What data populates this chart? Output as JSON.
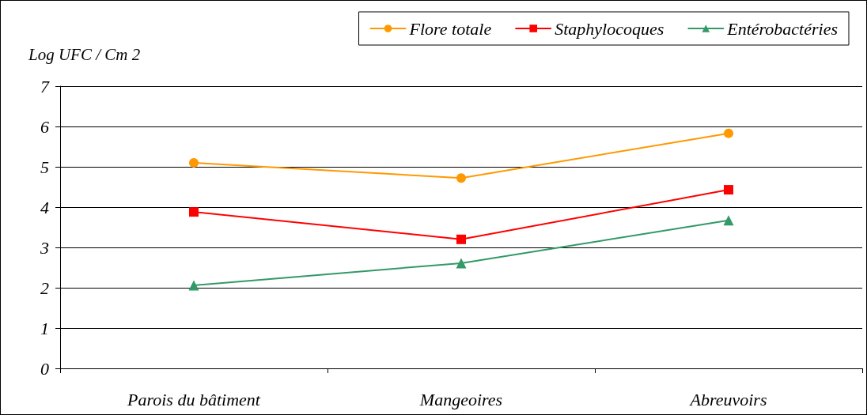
{
  "chart_data": {
    "type": "line",
    "ylabel": "Log UFC / Cm 2",
    "categories": [
      "Parois du bâtiment",
      "Mangeoires",
      "Abreuvoirs"
    ],
    "series": [
      {
        "name": "Flore totale",
        "color": "#ff9900",
        "marker": "circle",
        "values": [
          5.1,
          4.72,
          5.83
        ]
      },
      {
        "name": "Staphylocoques",
        "color": "#ff0000",
        "marker": "square",
        "values": [
          3.88,
          3.2,
          4.43
        ]
      },
      {
        "name": "Entérobactéries",
        "color": "#339966",
        "marker": "triangle",
        "values": [
          2.06,
          2.61,
          3.67
        ]
      }
    ],
    "ylim": [
      0,
      7
    ],
    "yticks": [
      0,
      1,
      2,
      3,
      4,
      5,
      6,
      7
    ],
    "grid": "y",
    "legend": "top right"
  }
}
